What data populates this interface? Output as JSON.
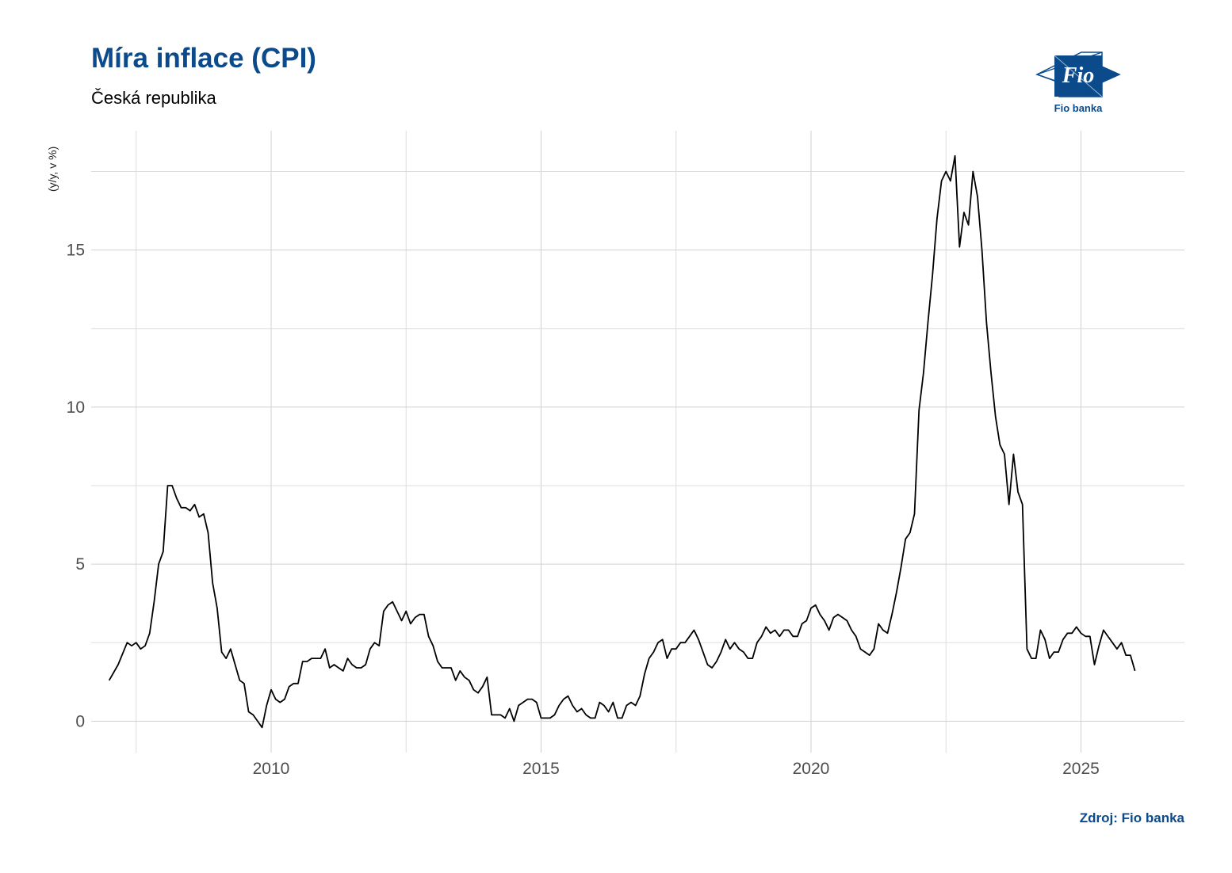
{
  "header": {
    "title": "Míra inflace (CPI)",
    "subtitle": "Česká republika"
  },
  "logo": {
    "name": "Fio banka",
    "mark_text": "Fio",
    "brand_color": "#0b4a8b"
  },
  "footer": {
    "source": "Zdroj: Fio banka"
  },
  "chart_data": {
    "type": "line",
    "title": "Míra inflace (CPI)",
    "subtitle": "Česká republika",
    "ylabel": "(y/y, v %)",
    "xlabel": "",
    "x_ticks": [
      2010,
      2015,
      2020,
      2025
    ],
    "y_ticks": [
      0,
      5,
      10,
      15
    ],
    "xlim": [
      "2006-09",
      "2026-12"
    ],
    "ylim": [
      -1.0,
      18.8
    ],
    "grid": true,
    "line_color": "#000000",
    "series": [
      {
        "points": [
          [
            "2007-01",
            1.3
          ],
          [
            "2007-03",
            1.8
          ],
          [
            "2007-05",
            2.5
          ],
          [
            "2007-06",
            2.4
          ],
          [
            "2007-07",
            2.5
          ],
          [
            "2007-08",
            2.3
          ],
          [
            "2007-09",
            2.4
          ],
          [
            "2007-10",
            2.8
          ],
          [
            "2007-11",
            3.8
          ],
          [
            "2007-12",
            5.0
          ],
          [
            "2008-01",
            5.4
          ],
          [
            "2008-02",
            7.5
          ],
          [
            "2008-03",
            7.5
          ],
          [
            "2008-04",
            7.1
          ],
          [
            "2008-05",
            6.8
          ],
          [
            "2008-06",
            6.8
          ],
          [
            "2008-07",
            6.7
          ],
          [
            "2008-08",
            6.9
          ],
          [
            "2008-09",
            6.5
          ],
          [
            "2008-10",
            6.6
          ],
          [
            "2008-11",
            6.0
          ],
          [
            "2008-12",
            4.4
          ],
          [
            "2009-01",
            3.6
          ],
          [
            "2009-02",
            2.2
          ],
          [
            "2009-03",
            2.0
          ],
          [
            "2009-04",
            2.3
          ],
          [
            "2009-05",
            1.8
          ],
          [
            "2009-06",
            1.3
          ],
          [
            "2009-07",
            1.2
          ],
          [
            "2009-08",
            0.3
          ],
          [
            "2009-09",
            0.2
          ],
          [
            "2009-10",
            0.0
          ],
          [
            "2009-11",
            -0.2
          ],
          [
            "2009-12",
            0.5
          ],
          [
            "2010-01",
            1.0
          ],
          [
            "2010-02",
            0.7
          ],
          [
            "2010-03",
            0.6
          ],
          [
            "2010-04",
            0.7
          ],
          [
            "2010-05",
            1.1
          ],
          [
            "2010-06",
            1.2
          ],
          [
            "2010-07",
            1.2
          ],
          [
            "2010-08",
            1.9
          ],
          [
            "2010-09",
            1.9
          ],
          [
            "2010-10",
            2.0
          ],
          [
            "2010-11",
            2.0
          ],
          [
            "2010-12",
            2.0
          ],
          [
            "2011-01",
            2.3
          ],
          [
            "2011-02",
            1.7
          ],
          [
            "2011-03",
            1.8
          ],
          [
            "2011-04",
            1.7
          ],
          [
            "2011-05",
            1.6
          ],
          [
            "2011-06",
            2.0
          ],
          [
            "2011-07",
            1.8
          ],
          [
            "2011-08",
            1.7
          ],
          [
            "2011-09",
            1.7
          ],
          [
            "2011-10",
            1.8
          ],
          [
            "2011-11",
            2.3
          ],
          [
            "2011-12",
            2.5
          ],
          [
            "2012-01",
            2.4
          ],
          [
            "2012-02",
            3.5
          ],
          [
            "2012-03",
            3.7
          ],
          [
            "2012-04",
            3.8
          ],
          [
            "2012-05",
            3.5
          ],
          [
            "2012-06",
            3.2
          ],
          [
            "2012-07",
            3.5
          ],
          [
            "2012-08",
            3.1
          ],
          [
            "2012-09",
            3.3
          ],
          [
            "2012-10",
            3.4
          ],
          [
            "2012-11",
            3.4
          ],
          [
            "2012-12",
            2.7
          ],
          [
            "2013-01",
            2.4
          ],
          [
            "2013-02",
            1.9
          ],
          [
            "2013-03",
            1.7
          ],
          [
            "2013-04",
            1.7
          ],
          [
            "2013-05",
            1.7
          ],
          [
            "2013-06",
            1.3
          ],
          [
            "2013-07",
            1.6
          ],
          [
            "2013-08",
            1.4
          ],
          [
            "2013-09",
            1.3
          ],
          [
            "2013-10",
            1.0
          ],
          [
            "2013-11",
            0.9
          ],
          [
            "2013-12",
            1.1
          ],
          [
            "2014-01",
            1.4
          ],
          [
            "2014-02",
            0.2
          ],
          [
            "2014-03",
            0.2
          ],
          [
            "2014-04",
            0.2
          ],
          [
            "2014-05",
            0.1
          ],
          [
            "2014-06",
            0.4
          ],
          [
            "2014-07",
            0.0
          ],
          [
            "2014-08",
            0.5
          ],
          [
            "2014-09",
            0.6
          ],
          [
            "2014-10",
            0.7
          ],
          [
            "2014-11",
            0.7
          ],
          [
            "2014-12",
            0.6
          ],
          [
            "2015-01",
            0.1
          ],
          [
            "2015-02",
            0.1
          ],
          [
            "2015-03",
            0.1
          ],
          [
            "2015-04",
            0.2
          ],
          [
            "2015-05",
            0.5
          ],
          [
            "2015-06",
            0.7
          ],
          [
            "2015-07",
            0.8
          ],
          [
            "2015-08",
            0.5
          ],
          [
            "2015-09",
            0.3
          ],
          [
            "2015-10",
            0.4
          ],
          [
            "2015-11",
            0.2
          ],
          [
            "2015-12",
            0.1
          ],
          [
            "2016-01",
            0.1
          ],
          [
            "2016-02",
            0.6
          ],
          [
            "2016-03",
            0.5
          ],
          [
            "2016-04",
            0.3
          ],
          [
            "2016-05",
            0.6
          ],
          [
            "2016-06",
            0.1
          ],
          [
            "2016-07",
            0.1
          ],
          [
            "2016-08",
            0.5
          ],
          [
            "2016-09",
            0.6
          ],
          [
            "2016-10",
            0.5
          ],
          [
            "2016-11",
            0.8
          ],
          [
            "2016-12",
            1.5
          ],
          [
            "2017-01",
            2.0
          ],
          [
            "2017-02",
            2.2
          ],
          [
            "2017-03",
            2.5
          ],
          [
            "2017-04",
            2.6
          ],
          [
            "2017-05",
            2.0
          ],
          [
            "2017-06",
            2.3
          ],
          [
            "2017-07",
            2.3
          ],
          [
            "2017-08",
            2.5
          ],
          [
            "2017-09",
            2.5
          ],
          [
            "2017-10",
            2.7
          ],
          [
            "2017-11",
            2.9
          ],
          [
            "2017-12",
            2.6
          ],
          [
            "2018-01",
            2.2
          ],
          [
            "2018-02",
            1.8
          ],
          [
            "2018-03",
            1.7
          ],
          [
            "2018-04",
            1.9
          ],
          [
            "2018-05",
            2.2
          ],
          [
            "2018-06",
            2.6
          ],
          [
            "2018-07",
            2.3
          ],
          [
            "2018-08",
            2.5
          ],
          [
            "2018-09",
            2.3
          ],
          [
            "2018-10",
            2.2
          ],
          [
            "2018-11",
            2.0
          ],
          [
            "2018-12",
            2.0
          ],
          [
            "2019-01",
            2.5
          ],
          [
            "2019-02",
            2.7
          ],
          [
            "2019-03",
            3.0
          ],
          [
            "2019-04",
            2.8
          ],
          [
            "2019-05",
            2.9
          ],
          [
            "2019-06",
            2.7
          ],
          [
            "2019-07",
            2.9
          ],
          [
            "2019-08",
            2.9
          ],
          [
            "2019-09",
            2.7
          ],
          [
            "2019-10",
            2.7
          ],
          [
            "2019-11",
            3.1
          ],
          [
            "2019-12",
            3.2
          ],
          [
            "2020-01",
            3.6
          ],
          [
            "2020-02",
            3.7
          ],
          [
            "2020-03",
            3.4
          ],
          [
            "2020-04",
            3.2
          ],
          [
            "2020-05",
            2.9
          ],
          [
            "2020-06",
            3.3
          ],
          [
            "2020-07",
            3.4
          ],
          [
            "2020-08",
            3.3
          ],
          [
            "2020-09",
            3.2
          ],
          [
            "2020-10",
            2.9
          ],
          [
            "2020-11",
            2.7
          ],
          [
            "2020-12",
            2.3
          ],
          [
            "2021-01",
            2.2
          ],
          [
            "2021-02",
            2.1
          ],
          [
            "2021-03",
            2.3
          ],
          [
            "2021-04",
            3.1
          ],
          [
            "2021-05",
            2.9
          ],
          [
            "2021-06",
            2.8
          ],
          [
            "2021-07",
            3.4
          ],
          [
            "2021-08",
            4.1
          ],
          [
            "2021-09",
            4.9
          ],
          [
            "2021-10",
            5.8
          ],
          [
            "2021-11",
            6.0
          ],
          [
            "2021-12",
            6.6
          ],
          [
            "2022-01",
            9.9
          ],
          [
            "2022-02",
            11.1
          ],
          [
            "2022-03",
            12.7
          ],
          [
            "2022-04",
            14.2
          ],
          [
            "2022-05",
            16.0
          ],
          [
            "2022-06",
            17.2
          ],
          [
            "2022-07",
            17.5
          ],
          [
            "2022-08",
            17.2
          ],
          [
            "2022-09",
            18.0
          ],
          [
            "2022-10",
            15.1
          ],
          [
            "2022-11",
            16.2
          ],
          [
            "2022-12",
            15.8
          ],
          [
            "2023-01",
            17.5
          ],
          [
            "2023-02",
            16.7
          ],
          [
            "2023-03",
            15.0
          ],
          [
            "2023-04",
            12.7
          ],
          [
            "2023-05",
            11.1
          ],
          [
            "2023-06",
            9.7
          ],
          [
            "2023-07",
            8.8
          ],
          [
            "2023-08",
            8.5
          ],
          [
            "2023-09",
            6.9
          ],
          [
            "2023-10",
            8.5
          ],
          [
            "2023-11",
            7.3
          ],
          [
            "2023-12",
            6.9
          ],
          [
            "2024-01",
            2.3
          ],
          [
            "2024-02",
            2.0
          ],
          [
            "2024-03",
            2.0
          ],
          [
            "2024-04",
            2.9
          ],
          [
            "2024-05",
            2.6
          ],
          [
            "2024-06",
            2.0
          ],
          [
            "2024-07",
            2.2
          ],
          [
            "2024-08",
            2.2
          ],
          [
            "2024-09",
            2.6
          ],
          [
            "2024-10",
            2.8
          ],
          [
            "2024-11",
            2.8
          ],
          [
            "2024-12",
            3.0
          ],
          [
            "2025-01",
            2.8
          ],
          [
            "2025-02",
            2.7
          ],
          [
            "2025-03",
            2.7
          ],
          [
            "2025-04",
            1.8
          ],
          [
            "2025-05",
            2.4
          ],
          [
            "2025-06",
            2.9
          ],
          [
            "2025-07",
            2.7
          ],
          [
            "2025-08",
            2.5
          ],
          [
            "2025-09",
            2.3
          ],
          [
            "2025-10",
            2.5
          ],
          [
            "2025-11",
            2.1
          ],
          [
            "2025-12",
            2.1
          ],
          [
            "2026-01",
            1.6
          ]
        ]
      }
    ]
  }
}
